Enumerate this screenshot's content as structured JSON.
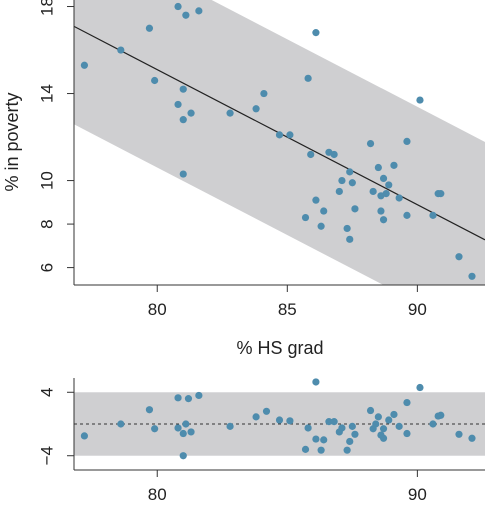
{
  "chart_data": [
    {
      "type": "scatter",
      "panel": "main",
      "xlabel": "% HS grad",
      "ylabel": "% in poverty",
      "xlim": [
        76.8,
        92.6
      ],
      "ylim": [
        5.2,
        18.3
      ],
      "x_ticks": [
        "80",
        "85",
        "90"
      ],
      "y_ticks": [
        "6",
        "8",
        "10",
        "14",
        "18"
      ],
      "background": "#ffffff",
      "band_color": "#cfcfd1",
      "point_color": "#4e8cad",
      "regression_line": {
        "intercept": 64.78,
        "slope": -0.621
      },
      "band_halfwidth": 4.5,
      "points": [
        {
          "x": 77.2,
          "y": 15.3
        },
        {
          "x": 78.6,
          "y": 16.0
        },
        {
          "x": 79.7,
          "y": 17.0
        },
        {
          "x": 79.9,
          "y": 14.6
        },
        {
          "x": 80.8,
          "y": 18.0
        },
        {
          "x": 81.1,
          "y": 17.6
        },
        {
          "x": 81.6,
          "y": 17.8
        },
        {
          "x": 80.8,
          "y": 13.5
        },
        {
          "x": 81.0,
          "y": 14.2
        },
        {
          "x": 81.3,
          "y": 13.1
        },
        {
          "x": 81.0,
          "y": 12.8
        },
        {
          "x": 81.0,
          "y": 10.3
        },
        {
          "x": 82.8,
          "y": 13.1
        },
        {
          "x": 83.8,
          "y": 13.3
        },
        {
          "x": 84.1,
          "y": 14.0
        },
        {
          "x": 84.7,
          "y": 12.1
        },
        {
          "x": 85.1,
          "y": 12.1
        },
        {
          "x": 86.1,
          "y": 16.8
        },
        {
          "x": 85.8,
          "y": 14.7
        },
        {
          "x": 85.9,
          "y": 11.2
        },
        {
          "x": 86.6,
          "y": 11.3
        },
        {
          "x": 86.8,
          "y": 11.2
        },
        {
          "x": 87.1,
          "y": 10.0
        },
        {
          "x": 87.0,
          "y": 9.5
        },
        {
          "x": 87.4,
          "y": 10.4
        },
        {
          "x": 87.5,
          "y": 9.9
        },
        {
          "x": 86.1,
          "y": 9.1
        },
        {
          "x": 86.4,
          "y": 8.6
        },
        {
          "x": 86.3,
          "y": 7.9
        },
        {
          "x": 85.7,
          "y": 8.3
        },
        {
          "x": 87.3,
          "y": 7.8
        },
        {
          "x": 87.4,
          "y": 7.3
        },
        {
          "x": 87.6,
          "y": 8.7
        },
        {
          "x": 88.2,
          "y": 11.7
        },
        {
          "x": 88.3,
          "y": 9.5
        },
        {
          "x": 88.5,
          "y": 10.6
        },
        {
          "x": 88.6,
          "y": 9.3
        },
        {
          "x": 88.7,
          "y": 10.1
        },
        {
          "x": 88.9,
          "y": 9.8
        },
        {
          "x": 88.8,
          "y": 9.4
        },
        {
          "x": 89.1,
          "y": 10.7
        },
        {
          "x": 89.3,
          "y": 9.2
        },
        {
          "x": 88.6,
          "y": 8.6
        },
        {
          "x": 88.7,
          "y": 8.2
        },
        {
          "x": 89.6,
          "y": 11.8
        },
        {
          "x": 89.6,
          "y": 8.4
        },
        {
          "x": 90.1,
          "y": 13.7
        },
        {
          "x": 90.8,
          "y": 9.4
        },
        {
          "x": 90.9,
          "y": 9.4
        },
        {
          "x": 90.6,
          "y": 8.4
        },
        {
          "x": 91.6,
          "y": 6.5
        },
        {
          "x": 92.1,
          "y": 5.6
        }
      ]
    },
    {
      "type": "scatter",
      "panel": "residuals",
      "xlim": [
        76.8,
        92.6
      ],
      "ylim": [
        -5.8,
        5.8
      ],
      "x_ticks": [
        "80",
        "90"
      ],
      "y_ticks": [
        "4",
        "−4"
      ],
      "band_halfwidth": 4.0,
      "zero_line": "dashed",
      "points": [
        {
          "x": 77.2,
          "y": -1.5
        },
        {
          "x": 78.6,
          "y": 0.0
        },
        {
          "x": 79.7,
          "y": 1.8
        },
        {
          "x": 79.9,
          "y": -0.6
        },
        {
          "x": 80.8,
          "y": -0.5
        },
        {
          "x": 81.0,
          "y": -1.2
        },
        {
          "x": 81.1,
          "y": 0.0
        },
        {
          "x": 81.0,
          "y": -4.0
        },
        {
          "x": 80.8,
          "y": 3.3
        },
        {
          "x": 81.2,
          "y": 3.2
        },
        {
          "x": 81.6,
          "y": 3.6
        },
        {
          "x": 81.3,
          "y": -1.0
        },
        {
          "x": 82.8,
          "y": -0.3
        },
        {
          "x": 83.8,
          "y": 0.9
        },
        {
          "x": 84.2,
          "y": 1.6
        },
        {
          "x": 84.7,
          "y": 0.5
        },
        {
          "x": 85.1,
          "y": 0.4
        },
        {
          "x": 85.7,
          "y": -3.2
        },
        {
          "x": 85.8,
          "y": -0.5
        },
        {
          "x": 86.1,
          "y": 5.3
        },
        {
          "x": 86.1,
          "y": -1.9
        },
        {
          "x": 86.3,
          "y": -3.3
        },
        {
          "x": 86.4,
          "y": -2.0
        },
        {
          "x": 86.6,
          "y": 0.3
        },
        {
          "x": 86.8,
          "y": 0.3
        },
        {
          "x": 87.0,
          "y": -1.0
        },
        {
          "x": 87.1,
          "y": -0.5
        },
        {
          "x": 87.3,
          "y": -3.3
        },
        {
          "x": 87.4,
          "y": -2.2
        },
        {
          "x": 87.5,
          "y": -0.3
        },
        {
          "x": 87.6,
          "y": -1.3
        },
        {
          "x": 88.2,
          "y": 1.7
        },
        {
          "x": 88.3,
          "y": -0.6
        },
        {
          "x": 88.4,
          "y": 0.0
        },
        {
          "x": 88.5,
          "y": 0.9
        },
        {
          "x": 88.6,
          "y": -1.4
        },
        {
          "x": 88.7,
          "y": -0.6
        },
        {
          "x": 88.7,
          "y": -1.8
        },
        {
          "x": 88.9,
          "y": 0.5
        },
        {
          "x": 89.1,
          "y": 1.2
        },
        {
          "x": 89.3,
          "y": -0.3
        },
        {
          "x": 89.6,
          "y": 2.7
        },
        {
          "x": 89.6,
          "y": -1.2
        },
        {
          "x": 90.1,
          "y": 4.6
        },
        {
          "x": 90.6,
          "y": 0.0
        },
        {
          "x": 90.8,
          "y": 1.0
        },
        {
          "x": 90.9,
          "y": 1.1
        },
        {
          "x": 91.6,
          "y": -1.3
        },
        {
          "x": 92.1,
          "y": -1.8
        }
      ]
    }
  ]
}
